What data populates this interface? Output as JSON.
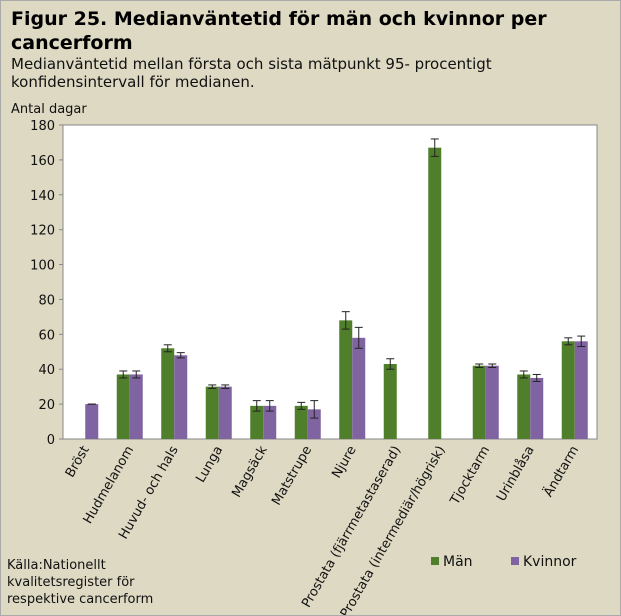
{
  "chart_data": {
    "type": "bar",
    "title": "Figur 25. Medianväntetid för män och kvinnor per cancerform",
    "subtitle": "Medianväntetid mellan  första och sista mätpunkt  95- procentigt konfidensintervall för medianen.",
    "y_label": "Antal dagar",
    "source": "Källa:Nationellt kvalitetsregister för respektive cancerform",
    "categories": [
      "Bröst",
      "Hudmelanom",
      "Huvud- och hals",
      "Lunga",
      "Magsäck",
      "Matstrupe",
      "Njure",
      "Prostata (fjärrmetastaserad)",
      "Prostata (intermediär/högrisk)",
      "Tjocktarm",
      "Urinblåsa",
      "Ändtarm"
    ],
    "series": [
      {
        "name": "Män",
        "color": "#4f7f2a",
        "values": [
          null,
          37,
          52,
          30,
          19,
          19,
          68,
          43,
          167,
          42,
          37,
          56
        ],
        "errors": [
          null,
          2,
          2,
          1,
          3,
          2,
          5,
          3,
          5,
          1,
          2,
          2
        ]
      },
      {
        "name": "Kvinnor",
        "color": "#8064a2",
        "values": [
          20,
          37,
          48,
          30,
          19,
          17,
          58,
          null,
          null,
          42,
          35,
          56
        ],
        "errors": [
          0,
          2,
          1.5,
          1,
          3,
          5,
          6,
          null,
          null,
          1,
          2,
          3
        ]
      }
    ],
    "ylim": [
      0,
      180
    ],
    "yticks": [
      0,
      20,
      40,
      60,
      80,
      100,
      120,
      140,
      160,
      180
    ],
    "grid": false
  }
}
